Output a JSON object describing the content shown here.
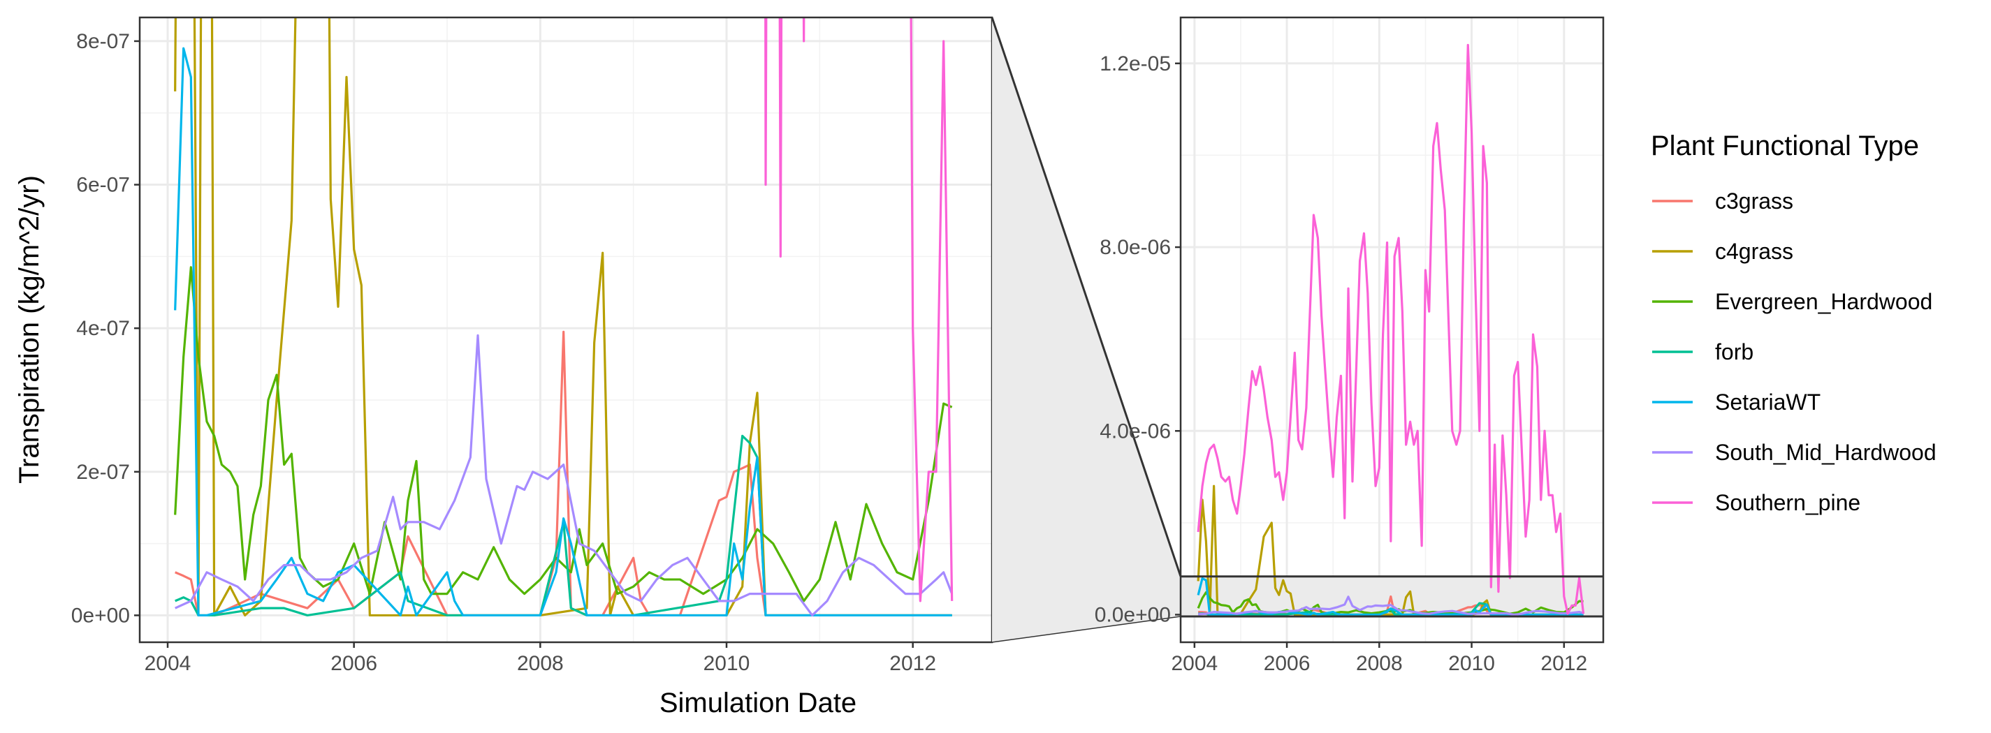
{
  "chart_data": {
    "type": "line",
    "xlabel": "Simulation Date",
    "ylabel": "Transpiration (kg/m^2/yr)",
    "legend_title": "Plant Functional Type",
    "legend_position": "right",
    "grid": true,
    "main_panel": {
      "xlim": [
        2003.7,
        2012.85
      ],
      "ylim": [
        -3.75e-08,
        8.33e-07
      ],
      "x_ticks": [
        2004,
        2006,
        2008,
        2010,
        2012
      ],
      "x_tick_labels": [
        "2004",
        "2006",
        "2008",
        "2010",
        "2012"
      ],
      "y_ticks": [
        0,
        2e-07,
        4e-07,
        6e-07,
        8e-07
      ],
      "y_tick_labels": [
        "0e+00",
        "2e-07",
        "4e-07",
        "6e-07",
        "8e-07"
      ]
    },
    "zoom_panel": {
      "xlim": [
        2003.7,
        2012.85
      ],
      "ylim": [
        -6e-07,
        1.3e-05
      ],
      "x_ticks": [
        2004,
        2006,
        2008,
        2010,
        2012
      ],
      "x_tick_labels": [
        "2004",
        "2006",
        "2008",
        "2010",
        "2012"
      ],
      "y_ticks": [
        0,
        4e-06,
        8e-06,
        1.2e-05
      ],
      "y_tick_labels": [
        "0.0e+00",
        "4.0e-06",
        "8.0e-06",
        "1.2e-05"
      ],
      "highlight_ylim": [
        -3.75e-08,
        8.33e-07
      ]
    },
    "series": [
      {
        "name": "c3grass",
        "color": "#F8766D",
        "x": [
          2004.08,
          2004.17,
          2004.25,
          2004.33,
          2004.5,
          2005.0,
          2005.5,
          2005.83,
          2006.0,
          2006.5,
          2006.58,
          2007.0,
          2007.5,
          2008.0,
          2008.17,
          2008.25,
          2008.33,
          2008.5,
          2008.67,
          2009.0,
          2009.08,
          2009.17,
          2009.5,
          2009.92,
          2010.0,
          2010.08,
          2010.17,
          2010.25,
          2010.33,
          2010.42,
          2010.5,
          2011.0,
          2011.5,
          2012.0,
          2012.17,
          2012.42
        ],
        "y": [
          6e-08,
          5.5e-08,
          5e-08,
          0.0,
          0.0,
          3e-08,
          1e-08,
          5e-08,
          1e-08,
          6e-08,
          1.1e-07,
          0.0,
          0.0,
          0.0,
          8e-08,
          3.95e-07,
          1e-08,
          0.0,
          0.0,
          8e-08,
          2e-08,
          0.0,
          0.0,
          1.6e-07,
          1.65e-07,
          2e-07,
          2.05e-07,
          2.1e-07,
          8e-08,
          0.0,
          0.0,
          0.0,
          0.0,
          0.0,
          0.0,
          0.0
        ]
      },
      {
        "name": "c4grass",
        "color": "#B79F00",
        "x": [
          2004.08,
          2004.17,
          2004.25,
          2004.33,
          2004.42,
          2004.5,
          2004.67,
          2004.83,
          2005.0,
          2005.17,
          2005.33,
          2005.5,
          2005.67,
          2005.75,
          2005.83,
          2005.92,
          2006.0,
          2006.08,
          2006.17,
          2006.5,
          2007.0,
          2007.5,
          2008.0,
          2008.5,
          2008.58,
          2008.67,
          2008.75,
          2008.83,
          2009.0,
          2009.5,
          2010.0,
          2010.17,
          2010.25,
          2010.33,
          2010.42,
          2010.5,
          2011.0,
          2011.5,
          2012.0,
          2012.42
        ],
        "y": [
          7.3e-07,
          2.5e-06,
          1.6e-06,
          0.0,
          2.8e-06,
          0.0,
          4e-08,
          0.0,
          2e-08,
          3e-07,
          5.5e-07,
          1.7e-06,
          2e-06,
          5.8e-07,
          4.3e-07,
          7.5e-07,
          5.1e-07,
          4.6e-07,
          0.0,
          0.0,
          0.0,
          0.0,
          0.0,
          1e-08,
          3.8e-07,
          5.05e-07,
          0.0,
          4e-08,
          0.0,
          0.0,
          0.0,
          4e-08,
          2.4e-07,
          3.1e-07,
          0.0,
          0.0,
          0.0,
          0.0,
          0.0,
          0.0
        ]
      },
      {
        "name": "Evergreen_Hardwood",
        "color": "#53B400",
        "x": [
          2004.08,
          2004.17,
          2004.25,
          2004.33,
          2004.42,
          2004.5,
          2004.58,
          2004.67,
          2004.75,
          2004.83,
          2004.92,
          2005.0,
          2005.08,
          2005.17,
          2005.25,
          2005.33,
          2005.42,
          2005.5,
          2005.67,
          2005.83,
          2006.0,
          2006.17,
          2006.33,
          2006.5,
          2006.58,
          2006.67,
          2006.75,
          2006.83,
          2007.0,
          2007.17,
          2007.33,
          2007.5,
          2007.67,
          2007.83,
          2008.0,
          2008.17,
          2008.33,
          2008.42,
          2008.5,
          2008.67,
          2008.83,
          2009.0,
          2009.17,
          2009.33,
          2009.5,
          2009.75,
          2010.0,
          2010.17,
          2010.33,
          2010.5,
          2010.67,
          2010.83,
          2011.0,
          2011.17,
          2011.33,
          2011.5,
          2011.67,
          2011.83,
          2012.0,
          2012.17,
          2012.33,
          2012.42
        ],
        "y": [
          1.4e-07,
          3.6e-07,
          4.85e-07,
          3.6e-07,
          2.7e-07,
          2.5e-07,
          2.1e-07,
          2e-07,
          1.8e-07,
          5e-08,
          1.4e-07,
          1.8e-07,
          3e-07,
          3.35e-07,
          2.1e-07,
          2.25e-07,
          8e-08,
          6e-08,
          4e-08,
          5e-08,
          1e-07,
          3e-08,
          1.3e-07,
          5e-08,
          1.6e-07,
          2.15e-07,
          5e-08,
          3e-08,
          3e-08,
          6e-08,
          5e-08,
          9.5e-08,
          5e-08,
          3e-08,
          5e-08,
          8e-08,
          6e-08,
          1.2e-07,
          7e-08,
          1e-07,
          3e-08,
          4e-08,
          6e-08,
          5e-08,
          5e-08,
          3e-08,
          5e-08,
          8e-08,
          1.2e-07,
          1e-07,
          6e-08,
          2e-08,
          5e-08,
          1.3e-07,
          5e-08,
          1.55e-07,
          1e-07,
          6e-08,
          5e-08,
          1.6e-07,
          2.95e-07,
          2.9e-07
        ]
      },
      {
        "name": "forb",
        "color": "#00C094",
        "x": [
          2004.08,
          2004.17,
          2004.25,
          2004.33,
          2004.5,
          2005.0,
          2005.25,
          2005.5,
          2006.0,
          2006.5,
          2006.58,
          2007.0,
          2008.0,
          2008.25,
          2008.33,
          2008.5,
          2009.0,
          2009.92,
          2010.0,
          2010.17,
          2010.25,
          2010.33,
          2010.42,
          2010.5,
          2011.0,
          2012.0,
          2012.17,
          2012.42
        ],
        "y": [
          2e-08,
          2.5e-08,
          2e-08,
          0.0,
          0.0,
          1e-08,
          1e-08,
          0.0,
          1e-08,
          6e-08,
          2e-08,
          0.0,
          0.0,
          1.3e-07,
          1e-08,
          0.0,
          0.0,
          2e-08,
          5e-08,
          2.5e-07,
          2.4e-07,
          2.2e-07,
          0.0,
          0.0,
          0.0,
          0.0,
          0.0,
          0.0
        ]
      },
      {
        "name": "SetariaWT",
        "color": "#00B6EB",
        "x": [
          2004.08,
          2004.17,
          2004.25,
          2004.33,
          2004.42,
          2005.0,
          2005.17,
          2005.33,
          2005.5,
          2005.67,
          2005.83,
          2006.0,
          2006.5,
          2006.58,
          2006.67,
          2007.0,
          2007.08,
          2007.17,
          2008.0,
          2008.17,
          2008.25,
          2008.33,
          2008.5,
          2009.0,
          2010.0,
          2010.08,
          2010.17,
          2010.25,
          2010.33,
          2010.42,
          2010.5,
          2011.0,
          2012.0,
          2012.17,
          2012.42
        ],
        "y": [
          4.25e-07,
          7.9e-07,
          7.5e-07,
          0.0,
          0.0,
          2e-08,
          5e-08,
          8e-08,
          3e-08,
          2e-08,
          6e-08,
          7e-08,
          0.0,
          4e-08,
          0.0,
          6e-08,
          2e-08,
          0.0,
          0.0,
          6e-08,
          1.35e-07,
          1e-07,
          0.0,
          0.0,
          0.0,
          1e-07,
          5e-08,
          1.5e-07,
          2.2e-07,
          0.0,
          0.0,
          0.0,
          0.0,
          0.0,
          0.0
        ]
      },
      {
        "name": "South_Mid_Hardwood",
        "color": "#A58AFF",
        "x": [
          2004.08,
          2004.25,
          2004.42,
          2004.58,
          2004.75,
          2004.92,
          2005.08,
          2005.25,
          2005.42,
          2005.58,
          2005.75,
          2005.92,
          2006.08,
          2006.25,
          2006.42,
          2006.5,
          2006.58,
          2006.75,
          2006.92,
          2007.08,
          2007.25,
          2007.33,
          2007.42,
          2007.58,
          2007.75,
          2007.83,
          2007.92,
          2008.08,
          2008.25,
          2008.42,
          2008.58,
          2008.75,
          2008.92,
          2009.08,
          2009.25,
          2009.42,
          2009.58,
          2009.75,
          2009.92,
          2010.08,
          2010.25,
          2010.42,
          2010.58,
          2010.75,
          2010.92,
          2011.08,
          2011.25,
          2011.42,
          2011.58,
          2011.75,
          2011.92,
          2012.08,
          2012.25,
          2012.33,
          2012.42
        ],
        "y": [
          1e-08,
          2e-08,
          6e-08,
          5e-08,
          4e-08,
          2e-08,
          5e-08,
          7e-08,
          7e-08,
          5e-08,
          5e-08,
          6e-08,
          8e-08,
          9e-08,
          1.65e-07,
          1.2e-07,
          1.3e-07,
          1.3e-07,
          1.2e-07,
          1.6e-07,
          2.2e-07,
          3.9e-07,
          1.9e-07,
          1e-07,
          1.8e-07,
          1.75e-07,
          2e-07,
          1.9e-07,
          2.1e-07,
          1e-07,
          9e-08,
          6e-08,
          3e-08,
          2e-08,
          5e-08,
          7e-08,
          8e-08,
          5e-08,
          2e-08,
          2e-08,
          3e-08,
          3e-08,
          3e-08,
          3e-08,
          0.0,
          2e-08,
          6e-08,
          8e-08,
          7e-08,
          5e-08,
          3e-08,
          3e-08,
          5e-08,
          6e-08,
          3e-08
        ]
      },
      {
        "name": "Southern_pine",
        "color": "#FB61D7",
        "x": [
          2004.08,
          2004.17,
          2004.25,
          2004.33,
          2004.42,
          2004.5,
          2004.58,
          2004.67,
          2004.75,
          2004.83,
          2004.92,
          2005.0,
          2005.08,
          2005.17,
          2005.25,
          2005.33,
          2005.42,
          2005.5,
          2005.58,
          2005.67,
          2005.75,
          2005.83,
          2005.92,
          2006.0,
          2006.08,
          2006.17,
          2006.25,
          2006.33,
          2006.42,
          2006.5,
          2006.58,
          2006.67,
          2006.75,
          2006.83,
          2006.92,
          2007.0,
          2007.08,
          2007.17,
          2007.25,
          2007.33,
          2007.42,
          2007.5,
          2007.58,
          2007.67,
          2007.75,
          2007.83,
          2007.92,
          2008.0,
          2008.08,
          2008.17,
          2008.25,
          2008.33,
          2008.42,
          2008.5,
          2008.58,
          2008.67,
          2008.75,
          2008.83,
          2008.92,
          2009.0,
          2009.08,
          2009.17,
          2009.25,
          2009.33,
          2009.42,
          2009.5,
          2009.58,
          2009.67,
          2009.75,
          2009.83,
          2009.92,
          2010.0,
          2010.08,
          2010.17,
          2010.25,
          2010.33,
          2010.42,
          2010.5,
          2010.58,
          2010.67,
          2010.75,
          2010.83,
          2010.92,
          2011.0,
          2011.08,
          2011.17,
          2011.25,
          2011.33,
          2011.42,
          2011.5,
          2011.58,
          2011.67,
          2011.75,
          2011.83,
          2011.92,
          2012.0,
          2012.08,
          2012.17,
          2012.25,
          2012.33,
          2012.42
        ],
        "y": [
          1.8e-06,
          2.8e-06,
          3.3e-06,
          3.6e-06,
          3.7e-06,
          3.4e-06,
          3e-06,
          2.9e-06,
          3e-06,
          2.5e-06,
          2.2e-06,
          2.8e-06,
          3.5e-06,
          4.5e-06,
          5.3e-06,
          5e-06,
          5.4e-06,
          4.9e-06,
          4.3e-06,
          3.8e-06,
          3e-06,
          3.1e-06,
          2.5e-06,
          3.1e-06,
          4.3e-06,
          5.7e-06,
          3.8e-06,
          3.6e-06,
          4.5e-06,
          6.6e-06,
          8.7e-06,
          8.2e-06,
          6.5e-06,
          5.3e-06,
          4e-06,
          3e-06,
          4.3e-06,
          5.2e-06,
          2.1e-06,
          7.1e-06,
          2.9e-06,
          5.3e-06,
          7.7e-06,
          8.3e-06,
          7e-06,
          4.6e-06,
          2.8e-06,
          3.2e-06,
          6.1e-06,
          8.1e-06,
          1.6e-06,
          7.8e-06,
          8.2e-06,
          6.6e-06,
          3.7e-06,
          4.2e-06,
          3.7e-06,
          4e-06,
          1.5e-06,
          7.5e-06,
          6.6e-06,
          1.02e-05,
          1.07e-05,
          9.7e-06,
          8.8e-06,
          6.4e-06,
          4e-06,
          3.7e-06,
          4e-06,
          8.5e-06,
          1.24e-05,
          1.05e-05,
          7.2e-06,
          4e-06,
          1.02e-05,
          9.4e-06,
          6e-07,
          3.7e-06,
          5e-07,
          3.9e-06,
          2.6e-06,
          8e-07,
          5.2e-06,
          5.5e-06,
          3.7e-06,
          1.7e-06,
          2.5e-06,
          6.1e-06,
          5.4e-06,
          2.5e-06,
          4e-06,
          2.6e-06,
          2.6e-06,
          1.8e-06,
          2.2e-06,
          4e-07,
          2e-08,
          2e-07,
          2e-07,
          8e-07,
          2e-08
        ]
      }
    ]
  }
}
